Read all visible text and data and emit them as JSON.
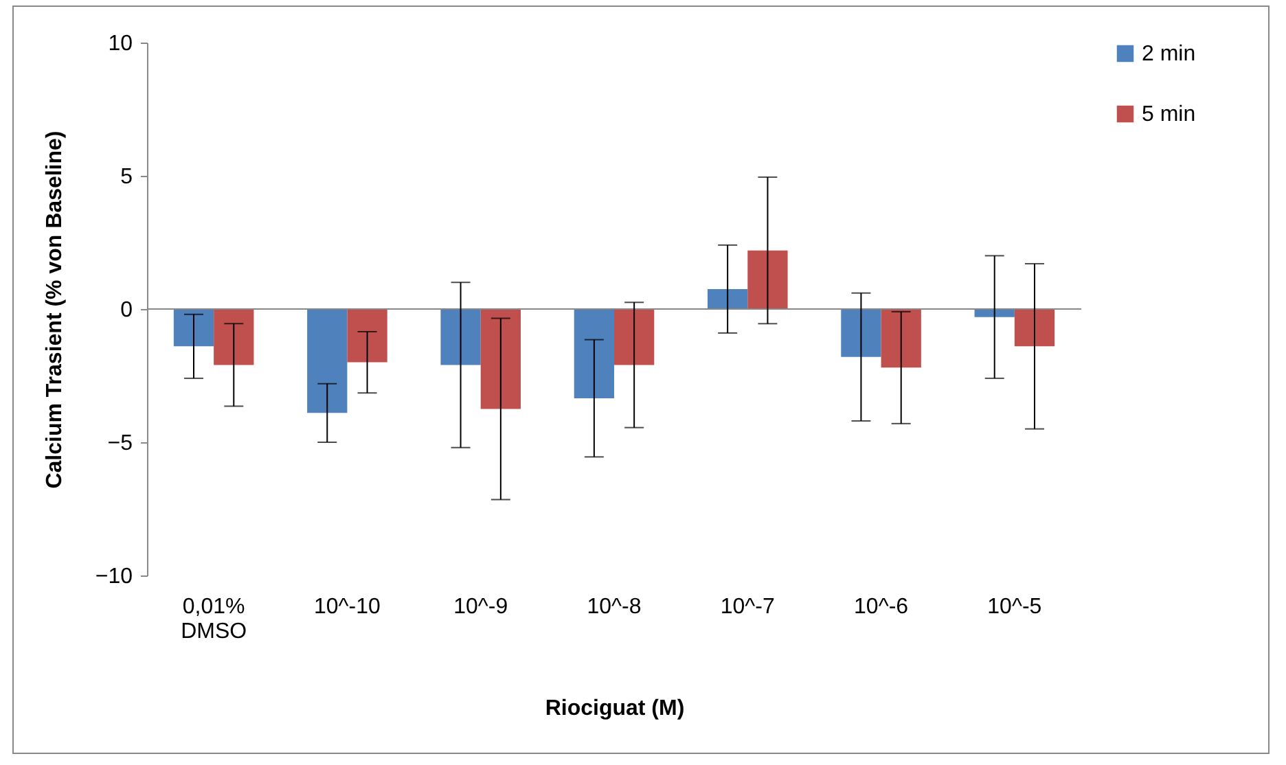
{
  "chart_data": {
    "type": "bar",
    "xlabel": "Riociguat (M)",
    "ylabel": "Calcium Trasient (% von Baseline)",
    "categories": [
      "0,01% DMSO",
      "10^-10",
      "10^-9",
      "10^-8",
      "10^-7",
      "10^-6",
      "10^-5"
    ],
    "series": [
      {
        "name": "2 min",
        "color": "#4f81bd",
        "values": [
          -1.4,
          -3.9,
          -2.1,
          -3.35,
          0.75,
          -1.8,
          -0.3
        ],
        "errors": [
          1.2,
          1.1,
          3.1,
          2.2,
          1.65,
          2.4,
          2.3
        ]
      },
      {
        "name": "5 min",
        "color": "#c0504d",
        "values": [
          -2.1,
          -2.0,
          -3.75,
          -2.1,
          2.2,
          -2.2,
          -1.4
        ],
        "errors": [
          1.55,
          1.15,
          3.4,
          2.35,
          2.75,
          2.1,
          3.1
        ]
      }
    ],
    "ylim": [
      -10,
      10
    ],
    "yticks": [
      -10,
      -5,
      0,
      5,
      10
    ],
    "ref_lines": [
      {
        "axis": "y",
        "value": 0,
        "color": "#888888"
      }
    ],
    "legend": "right"
  }
}
